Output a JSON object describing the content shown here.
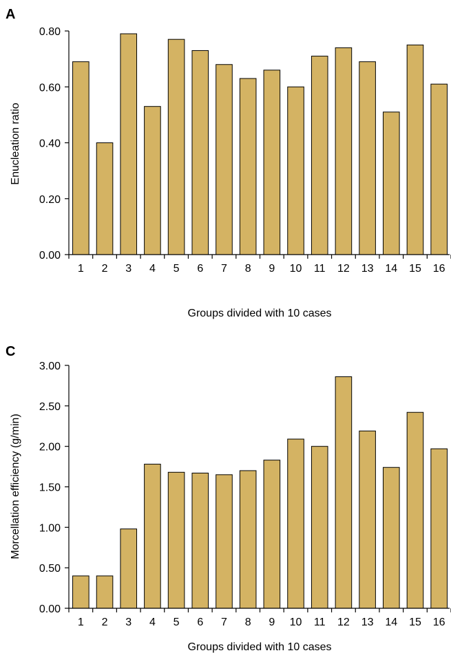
{
  "figure": {
    "bar_color": "#D4B363",
    "outline_color": "#000000"
  },
  "chart_data": [
    {
      "panel": "A",
      "type": "bar",
      "categories": [
        "1",
        "2",
        "3",
        "4",
        "5",
        "6",
        "7",
        "8",
        "9",
        "10",
        "11",
        "12",
        "13",
        "14",
        "15",
        "16"
      ],
      "values": [
        0.69,
        0.4,
        0.79,
        0.53,
        0.77,
        0.73,
        0.68,
        0.63,
        0.66,
        0.6,
        0.71,
        0.74,
        0.69,
        0.51,
        0.75,
        0.61
      ],
      "xlabel": "Groups divided with 10 cases",
      "ylabel": "Enucleation ratio",
      "ylim": [
        0,
        0.8
      ],
      "yticks": [
        "0.00",
        "0.20",
        "0.40",
        "0.60",
        "0.80"
      ],
      "grid": false
    },
    {
      "panel": "C",
      "type": "bar",
      "categories": [
        "1",
        "2",
        "3",
        "4",
        "5",
        "6",
        "7",
        "8",
        "9",
        "10",
        "11",
        "12",
        "13",
        "14",
        "15",
        "16"
      ],
      "values": [
        0.4,
        0.4,
        0.98,
        1.78,
        1.68,
        1.67,
        1.65,
        1.7,
        1.83,
        2.09,
        2.0,
        2.86,
        2.19,
        1.74,
        2.42,
        1.97
      ],
      "xlabel": "Groups divided with 10 cases",
      "ylabel": "Morcellation efficiency (g/min)",
      "ylim": [
        0,
        3.0
      ],
      "yticks": [
        "0.00",
        "0.50",
        "1.00",
        "1.50",
        "2.00",
        "2.50",
        "3.00"
      ],
      "grid": false
    }
  ]
}
